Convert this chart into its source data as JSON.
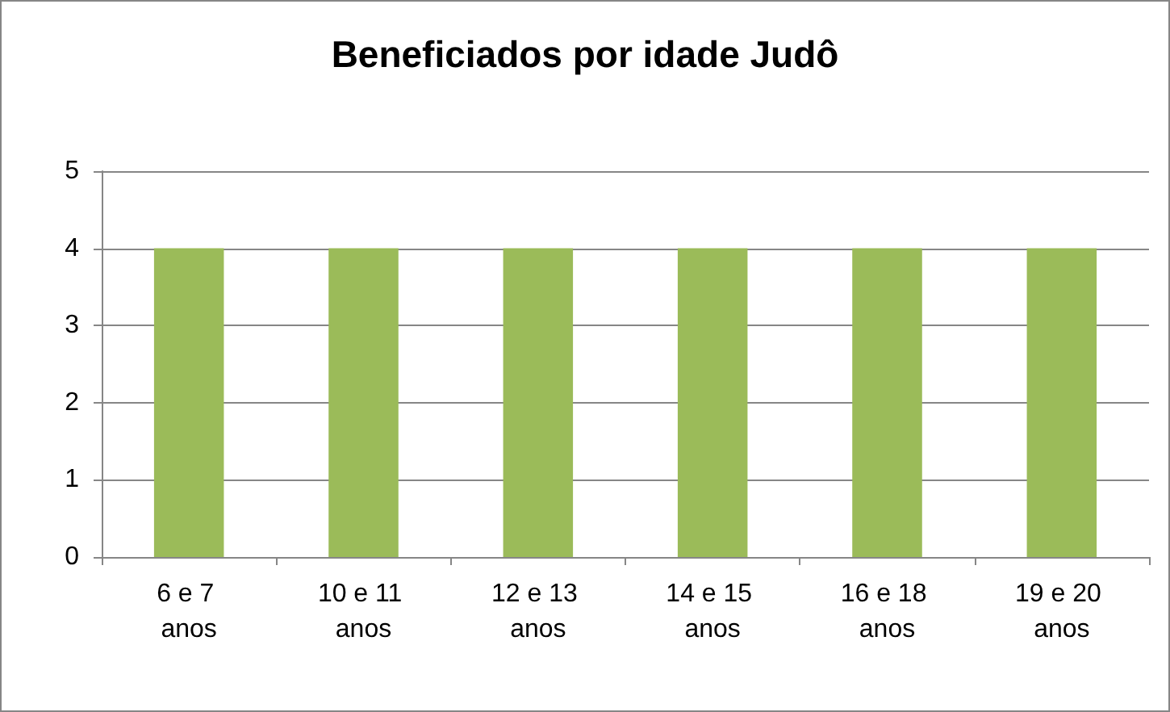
{
  "chart_data": {
    "type": "bar",
    "title": "Beneficiados por idade Judô",
    "categories": [
      "6 e 7 anos",
      "10 e 11 anos",
      "12 e 13 anos",
      "14 e 15 anos",
      "16 e 18 anos",
      "19 e 20 anos"
    ],
    "values": [
      4,
      4,
      4,
      4,
      4,
      4
    ],
    "color": "#9bbb59",
    "ylim": [
      0,
      5
    ],
    "yticks": [
      0,
      1,
      2,
      3,
      4,
      5
    ],
    "grid": "y"
  }
}
